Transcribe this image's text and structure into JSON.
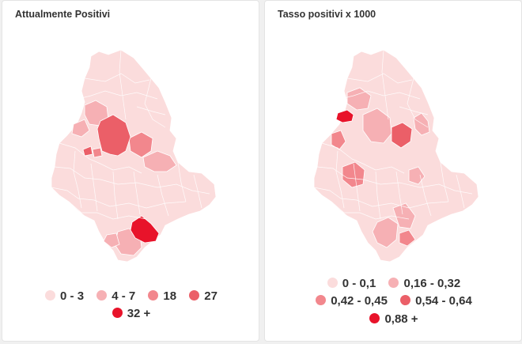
{
  "panels": [
    {
      "title": "Attualmente Positivi",
      "legend": [
        {
          "label": "0 - 3",
          "color": "#fbdcdc"
        },
        {
          "label": "4 - 7",
          "color": "#f6b0b4"
        },
        {
          "label": "18",
          "color": "#f2878d"
        },
        {
          "label": "27",
          "color": "#eb5f68"
        },
        {
          "label": "32 +",
          "color": "#e8132a"
        }
      ]
    },
    {
      "title": "Tasso positivi x 1000",
      "legend": [
        {
          "label": "0 - 0,1",
          "color": "#fbdcdc"
        },
        {
          "label": "0,16 - 0,32",
          "color": "#f6b0b4"
        },
        {
          "label": "0,42 - 0,45",
          "color": "#f2878d"
        },
        {
          "label": "0,54 - 0,64",
          "color": "#eb5f68"
        },
        {
          "label": "0,88 +",
          "color": "#e8132a"
        }
      ]
    }
  ]
}
